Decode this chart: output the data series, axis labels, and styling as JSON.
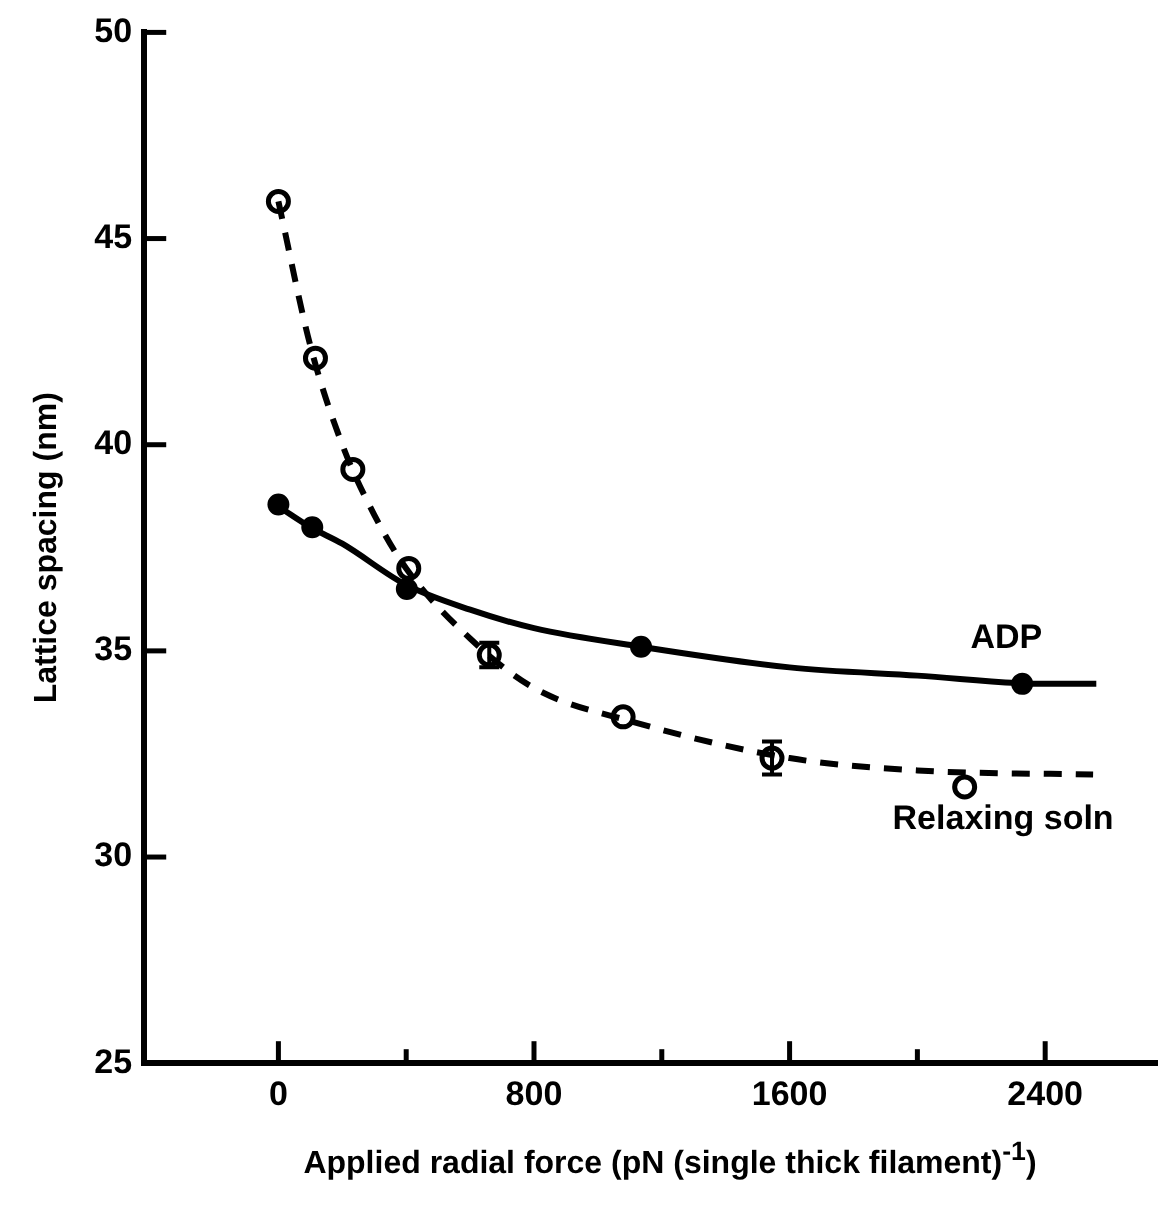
{
  "chart_data": {
    "type": "scatter",
    "xlabel": "Applied radial force (pN (single thick filament)$^{-1}$)",
    "ylabel": "Lattice spacing (nm)",
    "xlim": [
      -420,
      2750
    ],
    "ylim": [
      25,
      50
    ],
    "xticks": [
      0,
      {
        "value": 400,
        "label": null
      },
      800,
      {
        "value": 1200,
        "label": null
      },
      1600,
      {
        "value": 2000,
        "label": null
      },
      2400
    ],
    "yticks": [
      25,
      30,
      35,
      40,
      45,
      50
    ],
    "grid": false,
    "legend": false,
    "series": [
      {
        "name": "ADP",
        "type": "line",
        "color": "#000000",
        "line_style": "solid",
        "marker": "none",
        "x": [
          0,
          100,
          200,
          400,
          600,
          800,
          1135,
          1600,
          2000,
          2400,
          2560
        ],
        "values": [
          38.5,
          38.0,
          37.6,
          36.6,
          36.0,
          35.55,
          35.1,
          34.6,
          34.4,
          34.2,
          34.2
        ]
      },
      {
        "color": "#000000",
        "marker": "circle",
        "x": [
          0,
          106,
          402,
          1135,
          2328
        ],
        "values": [
          38.55,
          38.0,
          36.5,
          35.1,
          34.2
        ]
      },
      {
        "name": "Relaxing soln",
        "type": "line",
        "color": "#000000",
        "line_style": "dashed",
        "marker": "none",
        "x": [
          0,
          100,
          200,
          300,
          400,
          600,
          800,
          1100,
          1600,
          2000,
          2550
        ],
        "values": [
          45.9,
          42.4,
          40.0,
          38.3,
          37.0,
          35.3,
          34.1,
          33.3,
          32.4,
          32.1,
          32.0
        ]
      },
      {
        "color": "#000000",
        "marker": "circle",
        "x": [
          0,
          116,
          233,
          408,
          660,
          1079,
          1545,
          2148
        ],
        "values": [
          45.9,
          42.1,
          39.4,
          37.0,
          34.9,
          33.4,
          32.4,
          31.7
        ],
        "errors": [
          null,
          null,
          null,
          null,
          0.3,
          null,
          0.4,
          null
        ]
      }
    ]
  }
}
